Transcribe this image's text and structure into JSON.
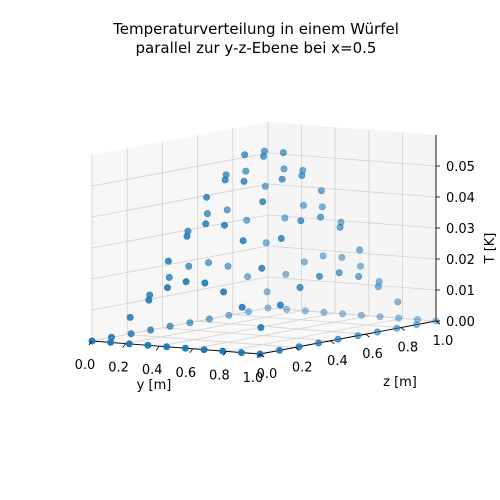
{
  "chart_data": {
    "type": "scatter",
    "projection": "3d",
    "title": "Temperaturverteilung in einem Würfel\nparallel zur y-z-Ebene bei x=0.5",
    "title_lines": [
      "Temperaturverteilung in einem Würfel",
      "parallel zur y-z-Ebene bei x=0.5"
    ],
    "xlabel": "y [m]",
    "ylabel": "z [m]",
    "zlabel": "T [K]",
    "xlim": [
      0,
      1
    ],
    "ylim": [
      0,
      1
    ],
    "zlim": [
      0,
      0.06
    ],
    "x_ticks": [
      "0.0",
      "0.2",
      "0.4",
      "0.6",
      "0.8",
      "1.0"
    ],
    "y_ticks": [
      "0.0",
      "0.2",
      "0.4",
      "0.6",
      "0.8",
      "1.0"
    ],
    "z_ticks": [
      "0.00",
      "0.01",
      "0.02",
      "0.03",
      "0.04",
      "0.05"
    ],
    "grid": true,
    "marker_color": "#1f77b4",
    "series": [
      {
        "grid_y": [
          0.0,
          0.111,
          0.222,
          0.333,
          0.444,
          0.556,
          0.667,
          0.778,
          0.889,
          1.0
        ],
        "grid_z": [
          0.0,
          0.111,
          0.222,
          0.333,
          0.444,
          0.556,
          0.667,
          0.778,
          0.889,
          1.0
        ],
        "T_max": 0.059,
        "T_formula": "T_max * sin(pi*y) * sin(pi*z)"
      }
    ]
  }
}
